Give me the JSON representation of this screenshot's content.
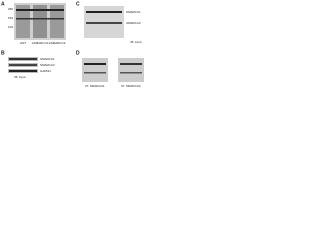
{
  "panels": [
    {
      "label": "A",
      "markers": [
        "250",
        "150",
        "100"
      ],
      "lanes": [
        "siNT",
        "siSMARCC1",
        "siSMARCC2"
      ]
    },
    {
      "label": "B",
      "rows": [
        "SMARCC1",
        "SMARCC2",
        "GAPDH"
      ],
      "footer": "IB: input"
    },
    {
      "label": "C",
      "rows": [
        "SMARCC1",
        "SMARCC2"
      ],
      "footer": "IB: input"
    },
    {
      "label": "D",
      "footers": [
        "IP: SMARCC1",
        "IP: SMARCC2"
      ]
    }
  ]
}
